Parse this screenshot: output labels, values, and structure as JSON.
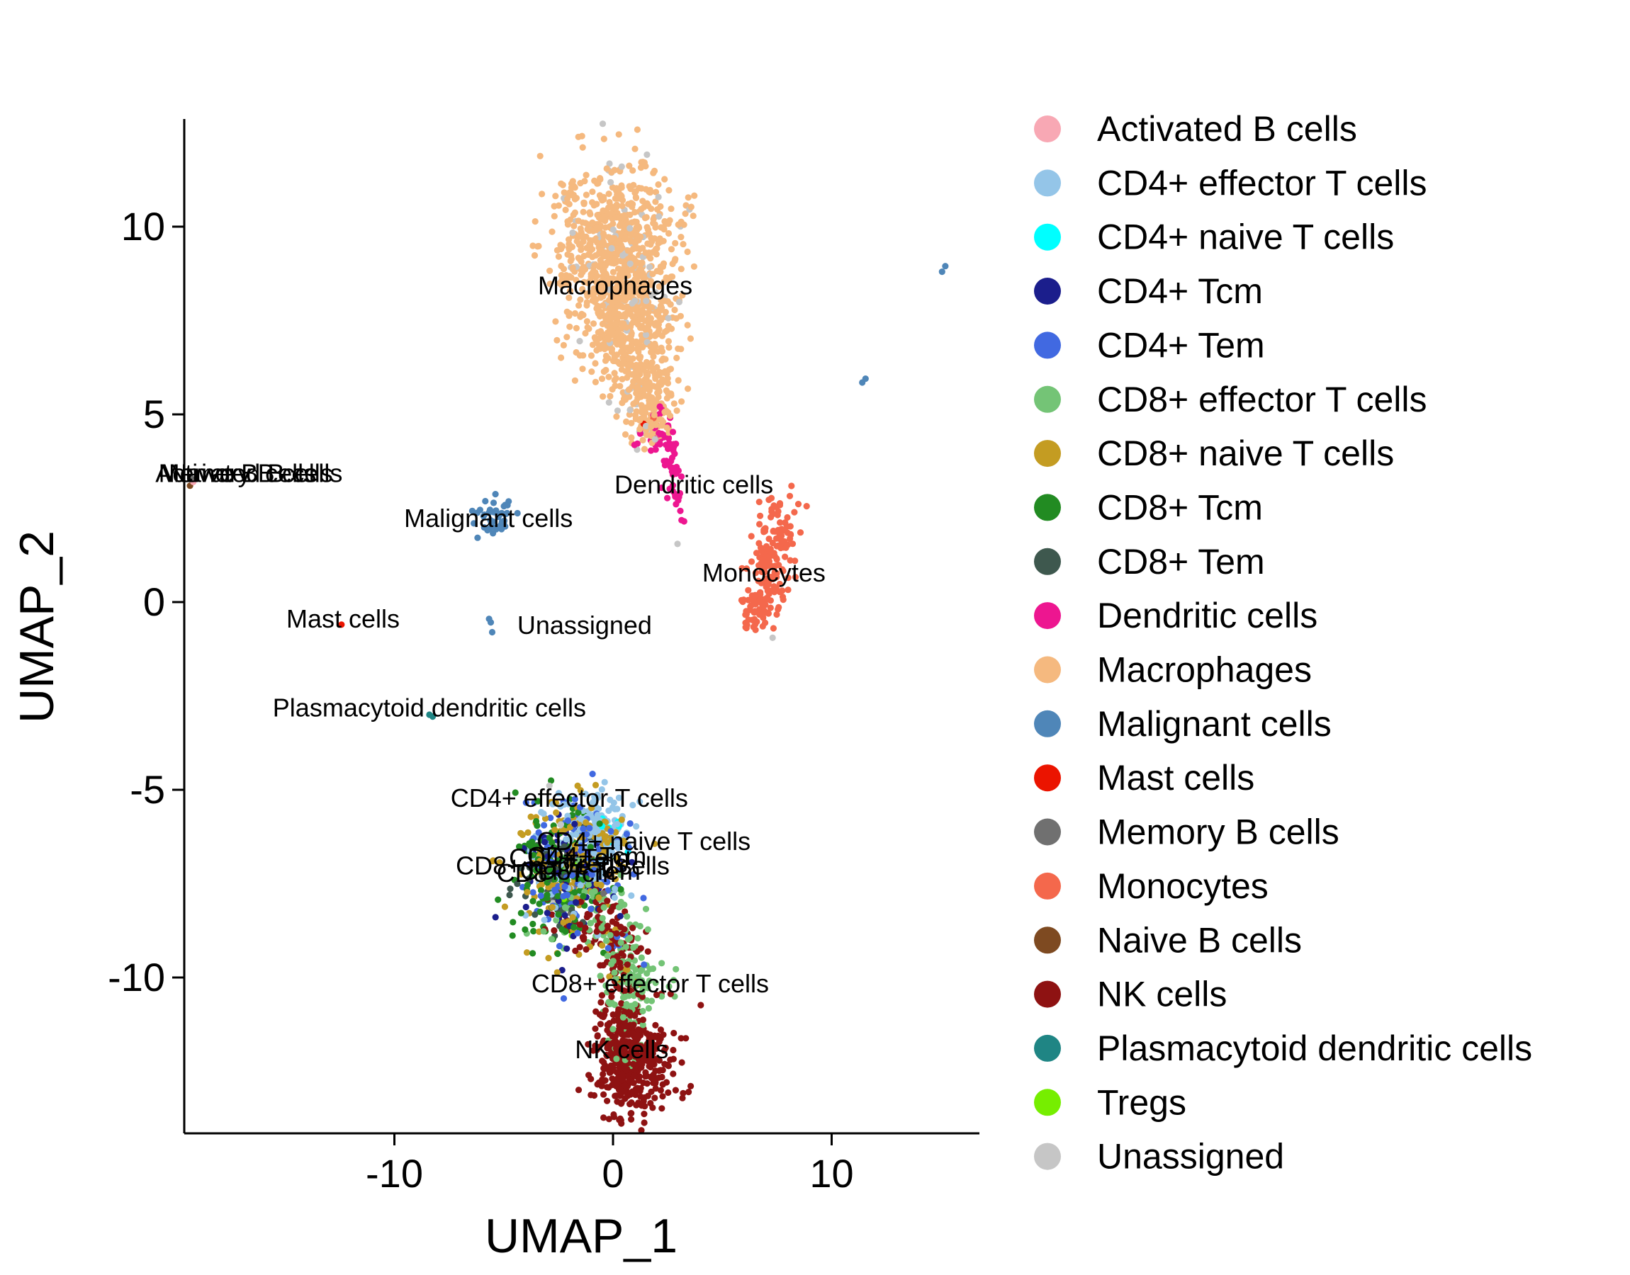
{
  "chart_data": {
    "type": "scatter",
    "title": "",
    "xlabel": "UMAP_1",
    "ylabel": "UMAP_2",
    "xlim": [
      -19.6,
      16.7
    ],
    "ylim": [
      -14.2,
      12.9
    ],
    "x_ticks": [
      -10,
      0,
      10
    ],
    "y_ticks": [
      -10,
      -5,
      0,
      5,
      10
    ],
    "grid": false,
    "legend_position": "right",
    "colors": {
      "activated_b": "#F8A8B4",
      "cd4_effector": "#94C5E8",
      "cd4_naive": "#00FFFF",
      "cd4_tcm": "#1B1E8C",
      "cd4_tem": "#4169E1",
      "cd8_effector": "#74C476",
      "cd8_naive": "#C49C22",
      "cd8_tcm": "#228B22",
      "cd8_tem": "#3E584E",
      "dendritic_cells": "#ED1690",
      "macrophages": "#F5B97F",
      "malignant_cells": "#4F86B8",
      "mast_cells": "#EB1400",
      "memory_b": "#707070",
      "monocytes": "#F4684C",
      "naive_b": "#7E4A21",
      "nk_cells": "#8E1212",
      "plasmacytoid_dc": "#1F8584",
      "tregs": "#76EE00",
      "unassigned": "#C6C6C6"
    },
    "legend": [
      {
        "label": "Activated B cells",
        "color": "activated_b"
      },
      {
        "label": "CD4+ effector T cells",
        "color": "cd4_effector"
      },
      {
        "label": "CD4+ naive T cells",
        "color": "cd4_naive"
      },
      {
        "label": "CD4+ Tcm",
        "color": "cd4_tcm"
      },
      {
        "label": "CD4+ Tem",
        "color": "cd4_tem"
      },
      {
        "label": "CD8+ effector T cells",
        "color": "cd8_effector"
      },
      {
        "label": "CD8+ naive T cells",
        "color": "cd8_naive"
      },
      {
        "label": "CD8+ Tcm",
        "color": "cd8_tcm"
      },
      {
        "label": "CD8+ Tem",
        "color": "cd8_tem"
      },
      {
        "label": "Dendritic cells",
        "color": "dendritic_cells"
      },
      {
        "label": "Macrophages",
        "color": "macrophages"
      },
      {
        "label": "Malignant cells",
        "color": "malignant_cells"
      },
      {
        "label": "Mast cells",
        "color": "mast_cells"
      },
      {
        "label": "Memory B cells",
        "color": "memory_b"
      },
      {
        "label": "Monocytes",
        "color": "monocytes"
      },
      {
        "label": "Naive B cells",
        "color": "naive_b"
      },
      {
        "label": "NK cells",
        "color": "nk_cells"
      },
      {
        "label": "Plasmacytoid dendritic cells",
        "color": "plasmacytoid_dc"
      },
      {
        "label": "Tregs",
        "color": "tregs"
      },
      {
        "label": "Unassigned",
        "color": "unassigned"
      }
    ],
    "clusters": [
      {
        "name": "macrophages-core",
        "color": "macrophages",
        "n": 650,
        "cx": 0.2,
        "cy": 9.4,
        "sx": 1.35,
        "sy": 1.05
      },
      {
        "name": "macrophages-mid",
        "color": "macrophages",
        "n": 330,
        "cx": 0.7,
        "cy": 7.3,
        "sx": 1.05,
        "sy": 0.85
      },
      {
        "name": "macrophages-lower",
        "color": "macrophages",
        "n": 160,
        "cx": 1.5,
        "cy": 5.6,
        "sx": 0.65,
        "sy": 0.65
      },
      {
        "name": "macrophages-tail",
        "color": "macrophages",
        "n": 30,
        "cx": 1.9,
        "cy": 4.8,
        "sx": 0.35,
        "sy": 0.35
      },
      {
        "name": "macrophages-antenna",
        "color": "macrophages",
        "n": 22,
        "cx": -1.95,
        "cy": 10.85,
        "sx": 0.22,
        "sy": 0.38
      },
      {
        "name": "unassigned-in-macrophages",
        "color": "unassigned",
        "n": 60,
        "cx": 0.2,
        "cy": 9.3,
        "sx": 1.5,
        "sy": 1.3
      },
      {
        "name": "unassigned-mid",
        "color": "unassigned",
        "n": 18,
        "cx": 1.2,
        "cy": 6.3,
        "sx": 0.8,
        "sy": 0.9
      },
      {
        "name": "unassigned-tail",
        "color": "unassigned",
        "n": 8,
        "cx": 1.9,
        "cy": 4.6,
        "sx": 0.3,
        "sy": 0.3
      },
      {
        "name": "dendritic-upper",
        "color": "dendritic_cells",
        "n": 28,
        "cx": 2.35,
        "cy": 4.35,
        "sx": 0.3,
        "sy": 0.28
      },
      {
        "name": "dendritic-chain",
        "color": "dendritic_cells",
        "n": 30,
        "cx": 2.75,
        "cy": 3.35,
        "sx": 0.2,
        "sy": 0.55
      },
      {
        "name": "dendritic-lower",
        "color": "dendritic_cells",
        "n": 6,
        "cx": 3.05,
        "cy": 2.6,
        "sx": 0.12,
        "sy": 0.2
      },
      {
        "name": "dendritic-in-macrophages",
        "color": "dendritic_cells",
        "n": 8,
        "cx": 1.7,
        "cy": 4.6,
        "sx": 0.4,
        "sy": 0.3
      },
      {
        "name": "monocytes-upper",
        "color": "monocytes",
        "n": 85,
        "cx": 7.55,
        "cy": 1.75,
        "sx": 0.5,
        "sy": 0.55
      },
      {
        "name": "monocytes-lower",
        "color": "monocytes",
        "n": 85,
        "cx": 6.95,
        "cy": 0.45,
        "sx": 0.45,
        "sy": 0.55
      },
      {
        "name": "monocytes-tip",
        "color": "monocytes",
        "n": 30,
        "cx": 6.35,
        "cy": -0.35,
        "sx": 0.3,
        "sy": 0.3
      },
      {
        "name": "malignant-main",
        "color": "malignant_cells",
        "n": 34,
        "cx": -5.5,
        "cy": 2.15,
        "sx": 0.42,
        "sy": 0.3
      },
      {
        "name": "malignant-upper",
        "color": "malignant_cells",
        "n": 8,
        "cx": -4.9,
        "cy": 2.55,
        "sx": 0.2,
        "sy": 0.15
      },
      {
        "name": "malignant-below",
        "color": "malignant_cells",
        "n": 3,
        "cx": -5.6,
        "cy": -0.65,
        "sx": 0.1,
        "sy": 0.12
      },
      {
        "name": "cd4-effector-top",
        "color": "cd4_effector",
        "n": 120,
        "cx": -0.7,
        "cy": -6.0,
        "sx": 0.85,
        "sy": 0.5
      },
      {
        "name": "cd4-effector-mix",
        "color": "cd4_effector",
        "n": 70,
        "cx": -1.8,
        "cy": -6.9,
        "sx": 1.1,
        "sy": 0.8
      },
      {
        "name": "cd4-naive",
        "color": "cd4_naive",
        "n": 8,
        "cx": -0.4,
        "cy": -6.4,
        "sx": 0.5,
        "sy": 0.4
      },
      {
        "name": "cd4-tcm",
        "color": "cd4_tcm",
        "n": 70,
        "cx": -1.9,
        "cy": -7.2,
        "sx": 1.05,
        "sy": 0.8
      },
      {
        "name": "cd4-tem",
        "color": "cd4_tem",
        "n": 130,
        "cx": -1.6,
        "cy": -7.0,
        "sx": 1.2,
        "sy": 0.9
      },
      {
        "name": "cd8-naive",
        "color": "cd8_naive",
        "n": 150,
        "cx": -2.1,
        "cy": -7.1,
        "sx": 1.25,
        "sy": 0.95
      },
      {
        "name": "cd8-naive-top",
        "color": "cd8_naive",
        "n": 25,
        "cx": -0.9,
        "cy": -6.1,
        "sx": 0.7,
        "sy": 0.4
      },
      {
        "name": "cd8-tcm",
        "color": "cd8_tcm",
        "n": 140,
        "cx": -2.2,
        "cy": -7.4,
        "sx": 1.1,
        "sy": 0.85
      },
      {
        "name": "cd8-tem",
        "color": "cd8_tem",
        "n": 70,
        "cx": -2.6,
        "cy": -7.5,
        "sx": 0.9,
        "sy": 0.7
      },
      {
        "name": "tregs",
        "color": "tregs",
        "n": 7,
        "cx": -1.6,
        "cy": -7.3,
        "sx": 0.8,
        "sy": 0.6
      },
      {
        "name": "cd8-effector-main",
        "color": "cd8_effector",
        "n": 55,
        "cx": -1.2,
        "cy": -7.9,
        "sx": 1.0,
        "sy": 0.7
      },
      {
        "name": "nk-in-main",
        "color": "nk_cells",
        "n": 45,
        "cx": -1.3,
        "cy": -8.5,
        "sx": 0.9,
        "sy": 0.45
      },
      {
        "name": "naive-b-sprinkle",
        "color": "naive_b",
        "n": 6,
        "cx": -2.0,
        "cy": -7.0,
        "sx": 1.0,
        "sy": 0.8
      },
      {
        "name": "memory-b-sprinkle",
        "color": "memory_b",
        "n": 5,
        "cx": -1.8,
        "cy": -7.2,
        "sx": 1.0,
        "sy": 0.8
      },
      {
        "name": "unassigned-t-sprinkle",
        "color": "unassigned",
        "n": 8,
        "cx": -1.6,
        "cy": -7.0,
        "sx": 1.2,
        "sy": 0.9
      },
      {
        "name": "nk-bridge",
        "color": "nk_cells",
        "n": 70,
        "cx": 0.3,
        "cy": -9.5,
        "sx": 0.55,
        "sy": 0.65
      },
      {
        "name": "cd8-effector-bridge",
        "color": "cd8_effector",
        "n": 70,
        "cx": 0.7,
        "cy": -9.9,
        "sx": 0.6,
        "sy": 0.65
      },
      {
        "name": "cd4-tem-bridge",
        "color": "cd4_tem",
        "n": 8,
        "cx": 0.3,
        "cy": -9.4,
        "sx": 0.5,
        "sy": 0.5
      },
      {
        "name": "cd8-naive-bridge",
        "color": "cd8_naive",
        "n": 8,
        "cx": 0.4,
        "cy": -9.6,
        "sx": 0.5,
        "sy": 0.5
      },
      {
        "name": "nk-main",
        "color": "nk_cells",
        "n": 360,
        "cx": 0.95,
        "cy": -12.35,
        "sx": 0.95,
        "sy": 0.7
      },
      {
        "name": "nk-upper",
        "color": "nk_cells",
        "n": 90,
        "cx": 0.35,
        "cy": -11.3,
        "sx": 0.55,
        "sy": 0.5
      },
      {
        "name": "cd8-effector-nk-top",
        "color": "cd8_effector",
        "n": 45,
        "cx": 1.1,
        "cy": -10.6,
        "sx": 0.8,
        "sy": 0.45
      },
      {
        "name": "cd8-effector-in-nk",
        "color": "cd8_effector",
        "n": 12,
        "cx": 0.9,
        "cy": -11.8,
        "sx": 0.6,
        "sy": 0.4
      }
    ],
    "singles": [
      {
        "color": "mast_cells",
        "x": -12.42,
        "y": -0.6
      },
      {
        "color": "mast_cells",
        "x": 1.4,
        "y": 4.75
      },
      {
        "color": "plasmacytoid_dc",
        "x": -8.4,
        "y": -3.0
      },
      {
        "color": "plasmacytoid_dc",
        "x": -8.25,
        "y": -3.05
      },
      {
        "color": "malignant_cells",
        "x": 15.2,
        "y": 8.95
      },
      {
        "color": "malignant_cells",
        "x": 15.05,
        "y": 8.8
      },
      {
        "color": "malignant_cells",
        "x": 11.55,
        "y": 5.95
      },
      {
        "color": "malignant_cells",
        "x": 11.4,
        "y": 5.85
      },
      {
        "color": "unassigned",
        "x": 2.95,
        "y": 1.55
      },
      {
        "color": "unassigned",
        "x": 7.3,
        "y": -0.95
      },
      {
        "color": "unassigned",
        "x": 0.4,
        "y": 11.6
      },
      {
        "color": "unassigned",
        "x": -0.2,
        "y": 11.5
      },
      {
        "color": "dendritic_cells",
        "x": 3.25,
        "y": 2.15
      },
      {
        "color": "monocytes",
        "x": 5.9,
        "y": 0.9
      },
      {
        "color": "monocytes",
        "x": 1.85,
        "y": 4.9
      },
      {
        "color": "memory_b",
        "x": -19.3,
        "y": 3.3
      },
      {
        "color": "naive_b",
        "x": -19.35,
        "y": 3.1
      },
      {
        "color": "activated_b",
        "x": -19.2,
        "y": 3.2
      }
    ],
    "labels": [
      {
        "text": "Macrophages",
        "x": 0.1,
        "y": 8.2
      },
      {
        "text": "Memory B cells",
        "x": -16.8,
        "y": 3.2
      },
      {
        "text": "Naive B cells",
        "x": -16.95,
        "y": 3.2
      },
      {
        "text": "Activated B cells",
        "x": -16.65,
        "y": 3.2
      },
      {
        "text": "Malignant cells",
        "x": -5.7,
        "y": 2.0
      },
      {
        "text": "Dendritic cells",
        "x": 3.7,
        "y": 2.9
      },
      {
        "text": "Monocytes",
        "x": 6.9,
        "y": 0.55
      },
      {
        "text": "Mast cells",
        "x": -12.35,
        "y": -0.68
      },
      {
        "text": "Unassigned",
        "x": -1.3,
        "y": -0.85
      },
      {
        "text": "Plasmacytoid dendritic cells",
        "x": -8.4,
        "y": -3.05
      },
      {
        "text": "CD4+ effector T cells",
        "x": -2.0,
        "y": -5.45
      },
      {
        "text": "CD4+ naive T cells",
        "x": 1.4,
        "y": -6.6
      },
      {
        "text": "CD4+ Tcm",
        "x": -1.2,
        "y": -7.0
      },
      {
        "text": "CD4+ Tem",
        "x": -2.0,
        "y": -7.05
      },
      {
        "text": "CD8+ naive T cells",
        "x": -2.3,
        "y": -7.25
      },
      {
        "text": "CD8+ Tcm",
        "x": -2.6,
        "y": -7.45
      },
      {
        "text": "CD8+ Tem",
        "x": -1.5,
        "y": -7.4
      },
      {
        "text": "Tregs",
        "x": -0.8,
        "y": -7.2
      },
      {
        "text": "CD8+ effector T cells",
        "x": 1.7,
        "y": -10.4
      },
      {
        "text": "NK cells",
        "x": 0.4,
        "y": -12.15
      }
    ]
  }
}
